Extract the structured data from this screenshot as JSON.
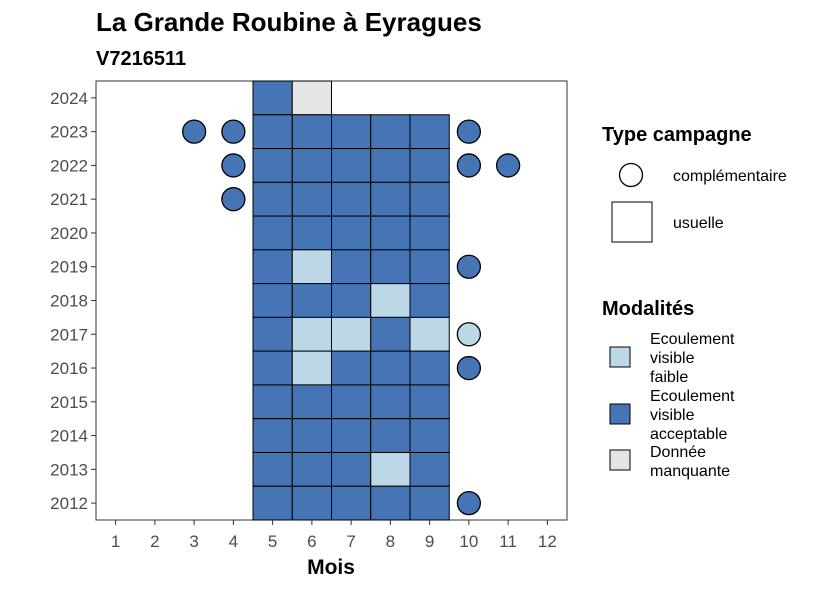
{
  "chart_data": {
    "type": "heatmap",
    "title": "La Grande Roubine à Eyragues",
    "subtitle": "V7216511",
    "xlabel": "Mois",
    "ylabel": "",
    "x_ticks": [
      "1",
      "2",
      "3",
      "4",
      "5",
      "6",
      "7",
      "8",
      "9",
      "10",
      "11",
      "12"
    ],
    "y_ticks": [
      "2012",
      "2013",
      "2014",
      "2015",
      "2016",
      "2017",
      "2018",
      "2019",
      "2020",
      "2021",
      "2022",
      "2023",
      "2024"
    ],
    "xlim": [
      0.5,
      12.5
    ],
    "ylim": [
      2011.5,
      2024.5
    ],
    "colors": {
      "faible": "#bcd8e6",
      "acceptable": "#4575b4",
      "manquante": "#e5e5e5"
    },
    "legend_shape": {
      "title": "Type campagne",
      "items": [
        {
          "key": "complementaire",
          "label": "complémentaire",
          "shape": "circle"
        },
        {
          "key": "usuelle",
          "label": "usuelle",
          "shape": "square"
        }
      ]
    },
    "legend_fill": {
      "title": "Modalités",
      "items": [
        {
          "key": "faible",
          "lines": [
            "Ecoulement",
            "visible",
            "faible"
          ]
        },
        {
          "key": "acceptable",
          "lines": [
            "Ecoulement",
            "visible",
            "acceptable"
          ]
        },
        {
          "key": "manquante",
          "lines": [
            "Donnée",
            "manquante"
          ]
        }
      ]
    },
    "usuelle": [
      {
        "year": 2024,
        "month": 5,
        "mod": "acceptable"
      },
      {
        "year": 2024,
        "month": 6,
        "mod": "manquante"
      },
      {
        "year": 2023,
        "month": 5,
        "mod": "acceptable"
      },
      {
        "year": 2023,
        "month": 6,
        "mod": "acceptable"
      },
      {
        "year": 2023,
        "month": 7,
        "mod": "acceptable"
      },
      {
        "year": 2023,
        "month": 8,
        "mod": "acceptable"
      },
      {
        "year": 2023,
        "month": 9,
        "mod": "acceptable"
      },
      {
        "year": 2022,
        "month": 5,
        "mod": "acceptable"
      },
      {
        "year": 2022,
        "month": 6,
        "mod": "acceptable"
      },
      {
        "year": 2022,
        "month": 7,
        "mod": "acceptable"
      },
      {
        "year": 2022,
        "month": 8,
        "mod": "acceptable"
      },
      {
        "year": 2022,
        "month": 9,
        "mod": "acceptable"
      },
      {
        "year": 2021,
        "month": 5,
        "mod": "acceptable"
      },
      {
        "year": 2021,
        "month": 6,
        "mod": "acceptable"
      },
      {
        "year": 2021,
        "month": 7,
        "mod": "acceptable"
      },
      {
        "year": 2021,
        "month": 8,
        "mod": "acceptable"
      },
      {
        "year": 2021,
        "month": 9,
        "mod": "acceptable"
      },
      {
        "year": 2020,
        "month": 5,
        "mod": "acceptable"
      },
      {
        "year": 2020,
        "month": 6,
        "mod": "acceptable"
      },
      {
        "year": 2020,
        "month": 7,
        "mod": "acceptable"
      },
      {
        "year": 2020,
        "month": 8,
        "mod": "acceptable"
      },
      {
        "year": 2020,
        "month": 9,
        "mod": "acceptable"
      },
      {
        "year": 2019,
        "month": 5,
        "mod": "acceptable"
      },
      {
        "year": 2019,
        "month": 6,
        "mod": "faible"
      },
      {
        "year": 2019,
        "month": 7,
        "mod": "acceptable"
      },
      {
        "year": 2019,
        "month": 8,
        "mod": "acceptable"
      },
      {
        "year": 2019,
        "month": 9,
        "mod": "acceptable"
      },
      {
        "year": 2018,
        "month": 5,
        "mod": "acceptable"
      },
      {
        "year": 2018,
        "month": 6,
        "mod": "acceptable"
      },
      {
        "year": 2018,
        "month": 7,
        "mod": "acceptable"
      },
      {
        "year": 2018,
        "month": 8,
        "mod": "faible"
      },
      {
        "year": 2018,
        "month": 9,
        "mod": "acceptable"
      },
      {
        "year": 2017,
        "month": 5,
        "mod": "acceptable"
      },
      {
        "year": 2017,
        "month": 6,
        "mod": "faible"
      },
      {
        "year": 2017,
        "month": 7,
        "mod": "faible"
      },
      {
        "year": 2017,
        "month": 8,
        "mod": "acceptable"
      },
      {
        "year": 2017,
        "month": 9,
        "mod": "faible"
      },
      {
        "year": 2016,
        "month": 5,
        "mod": "acceptable"
      },
      {
        "year": 2016,
        "month": 6,
        "mod": "faible"
      },
      {
        "year": 2016,
        "month": 7,
        "mod": "acceptable"
      },
      {
        "year": 2016,
        "month": 8,
        "mod": "acceptable"
      },
      {
        "year": 2016,
        "month": 9,
        "mod": "acceptable"
      },
      {
        "year": 2015,
        "month": 5,
        "mod": "acceptable"
      },
      {
        "year": 2015,
        "month": 6,
        "mod": "acceptable"
      },
      {
        "year": 2015,
        "month": 7,
        "mod": "acceptable"
      },
      {
        "year": 2015,
        "month": 8,
        "mod": "acceptable"
      },
      {
        "year": 2015,
        "month": 9,
        "mod": "acceptable"
      },
      {
        "year": 2014,
        "month": 5,
        "mod": "acceptable"
      },
      {
        "year": 2014,
        "month": 6,
        "mod": "acceptable"
      },
      {
        "year": 2014,
        "month": 7,
        "mod": "acceptable"
      },
      {
        "year": 2014,
        "month": 8,
        "mod": "acceptable"
      },
      {
        "year": 2014,
        "month": 9,
        "mod": "acceptable"
      },
      {
        "year": 2013,
        "month": 5,
        "mod": "acceptable"
      },
      {
        "year": 2013,
        "month": 6,
        "mod": "acceptable"
      },
      {
        "year": 2013,
        "month": 7,
        "mod": "acceptable"
      },
      {
        "year": 2013,
        "month": 8,
        "mod": "faible"
      },
      {
        "year": 2013,
        "month": 9,
        "mod": "acceptable"
      },
      {
        "year": 2012,
        "month": 5,
        "mod": "acceptable"
      },
      {
        "year": 2012,
        "month": 6,
        "mod": "acceptable"
      },
      {
        "year": 2012,
        "month": 7,
        "mod": "acceptable"
      },
      {
        "year": 2012,
        "month": 8,
        "mod": "acceptable"
      },
      {
        "year": 2012,
        "month": 9,
        "mod": "acceptable"
      }
    ],
    "complementaire": [
      {
        "year": 2023,
        "month": 3,
        "mod": "acceptable"
      },
      {
        "year": 2023,
        "month": 4,
        "mod": "acceptable"
      },
      {
        "year": 2023,
        "month": 10,
        "mod": "acceptable"
      },
      {
        "year": 2022,
        "month": 4,
        "mod": "acceptable"
      },
      {
        "year": 2022,
        "month": 10,
        "mod": "acceptable"
      },
      {
        "year": 2022,
        "month": 11,
        "mod": "acceptable"
      },
      {
        "year": 2021,
        "month": 4,
        "mod": "acceptable"
      },
      {
        "year": 2019,
        "month": 10,
        "mod": "acceptable"
      },
      {
        "year": 2017,
        "month": 10,
        "mod": "faible"
      },
      {
        "year": 2016,
        "month": 10,
        "mod": "acceptable"
      },
      {
        "year": 2012,
        "month": 10,
        "mod": "acceptable"
      }
    ]
  }
}
